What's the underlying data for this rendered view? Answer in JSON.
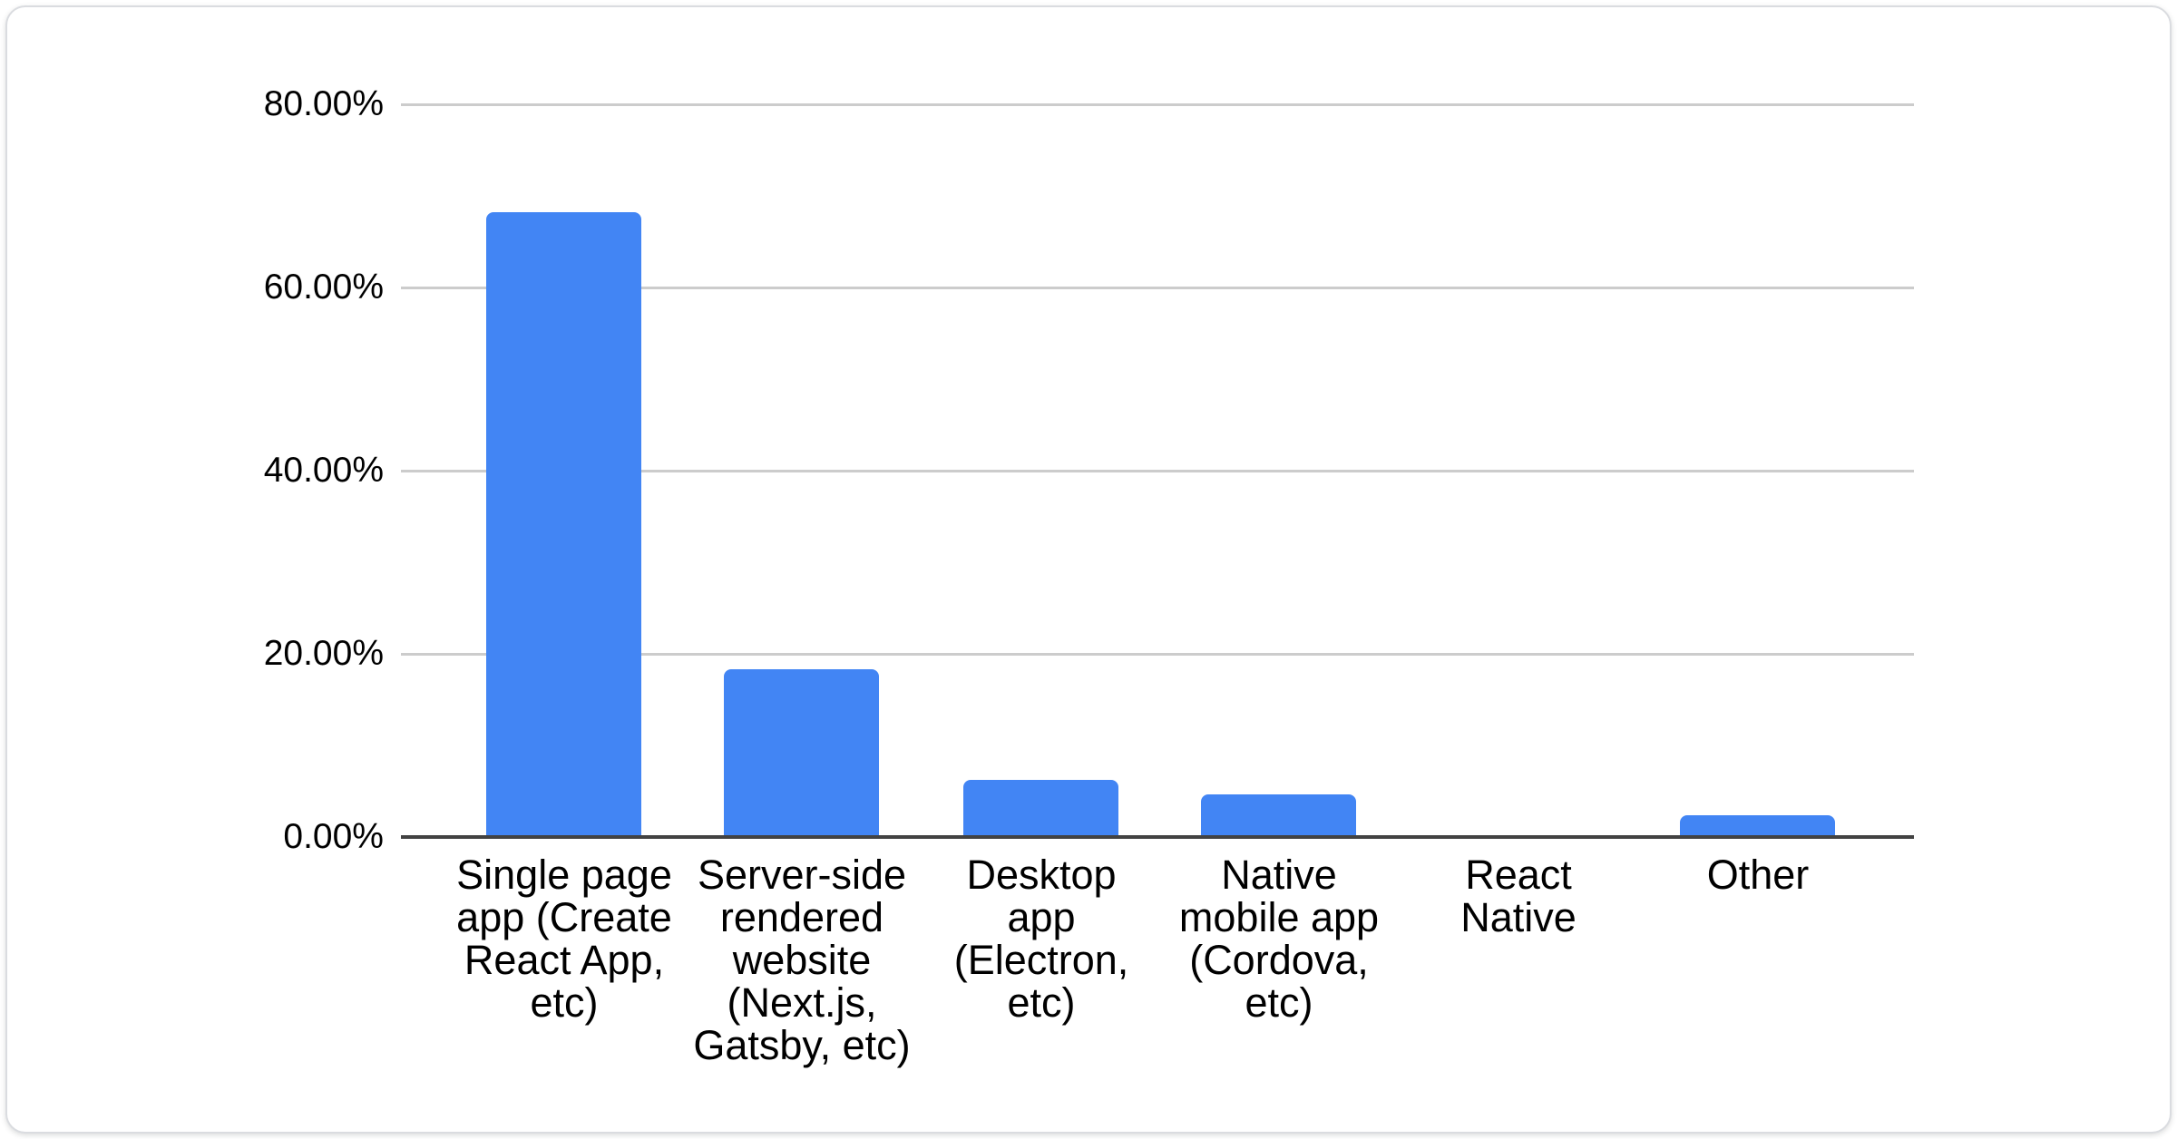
{
  "page": {
    "background": "#ffffff"
  },
  "card": {
    "background": "#ffffff",
    "border_color": "#dadce0"
  },
  "chart_data": {
    "type": "bar",
    "title": "",
    "xlabel": "",
    "ylabel": "",
    "ylim": [
      0,
      80
    ],
    "grid": true,
    "legend": "none",
    "bar_color": "#4285f4",
    "gridline_color": "#cccccc",
    "axis_line_color": "#424242",
    "text_color": "#000000",
    "y_ticks": [
      {
        "value": 80,
        "label": "80.00%"
      },
      {
        "value": 60,
        "label": "60.00%"
      },
      {
        "value": 40,
        "label": "40.00%"
      },
      {
        "value": 20,
        "label": "20.00%"
      },
      {
        "value": 0,
        "label": "0.00%"
      }
    ],
    "categories": [
      "Single page app (Create React App, etc)",
      "Server-side rendered website (Next.js, Gatsby, etc)",
      "Desktop app (Electron, etc)",
      "Native mobile app (Cordova, etc)",
      "React Native",
      "Other"
    ],
    "category_lines": [
      [
        "Single page",
        "app (Create",
        "React App,",
        "etc)"
      ],
      [
        "Server-side",
        "rendered",
        "website",
        "(Next.js,",
        "Gatsby, etc)"
      ],
      [
        "Desktop",
        "app",
        "(Electron,",
        "etc)"
      ],
      [
        "Native",
        "mobile app",
        "(Cordova,",
        "etc)"
      ],
      [
        "React",
        "Native"
      ],
      [
        "Other"
      ]
    ],
    "values": [
      68.2,
      18.3,
      6.2,
      4.7,
      0,
      2.4
    ]
  }
}
